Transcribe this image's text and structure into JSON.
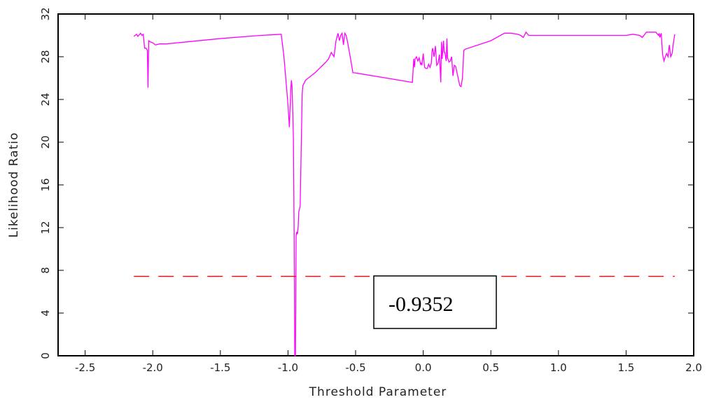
{
  "chart_data": {
    "type": "line",
    "title": "",
    "xlabel": "Threshold Parameter",
    "ylabel": "Likelihood Ratio",
    "xlim": [
      -2.7,
      2.0
    ],
    "ylim": [
      0,
      32
    ],
    "x_ticks": [
      -2.5,
      -2.0,
      -1.5,
      -1.0,
      -0.5,
      0.0,
      0.5,
      1.0,
      1.5,
      2.0
    ],
    "x_tick_labels": [
      "-2.5",
      "-2.0",
      "-1.5",
      "-1.0",
      "-0.5",
      "0.0",
      "0.5",
      "1.0",
      "1.5",
      "2.0"
    ],
    "y_ticks": [
      0,
      4,
      8,
      12,
      16,
      20,
      24,
      28,
      32
    ],
    "y_tick_labels": [
      "0",
      "4",
      "8",
      "12",
      "16",
      "20",
      "24",
      "28",
      "32"
    ],
    "grid": false,
    "series": [
      {
        "color": "#ff00ff",
        "style": "solid",
        "x": [
          -2.14,
          -2.12,
          -2.11,
          -2.09,
          -2.08,
          -2.07,
          -2.06,
          -2.05,
          -2.04,
          -2.035,
          -2.03,
          -2.02,
          -2.0,
          -1.98,
          -1.95,
          -1.9,
          -1.5,
          -1.2,
          -1.05,
          -1.03,
          -1.0,
          -0.99,
          -0.98,
          -0.975,
          -0.97,
          -0.965,
          -0.96,
          -0.955,
          -0.95,
          -0.945,
          -0.94,
          -0.9352,
          -0.93,
          -0.925,
          -0.92,
          -0.91,
          -0.895,
          -0.89,
          -0.87,
          -0.8,
          -0.72,
          -0.7,
          -0.68,
          -0.66,
          -0.645,
          -0.63,
          -0.62,
          -0.61,
          -0.6,
          -0.59,
          -0.58,
          -0.57,
          -0.56,
          -0.54,
          -0.52,
          -0.51,
          -0.08,
          -0.07,
          -0.065,
          -0.06,
          -0.05,
          -0.04,
          -0.03,
          -0.02,
          -0.015,
          -0.01,
          0.0,
          0.01,
          0.02,
          0.03,
          0.04,
          0.05,
          0.06,
          0.065,
          0.07,
          0.08,
          0.09,
          0.1,
          0.11,
          0.12,
          0.13,
          0.135,
          0.14,
          0.15,
          0.155,
          0.16,
          0.17,
          0.175,
          0.18,
          0.19,
          0.2,
          0.21,
          0.22,
          0.23,
          0.24,
          0.25,
          0.27,
          0.28,
          0.29,
          0.3,
          0.31,
          0.5,
          0.6,
          0.65,
          0.7,
          0.72,
          0.74,
          0.76,
          0.78,
          1.0,
          1.5,
          1.55,
          1.6,
          1.62,
          1.65,
          1.7,
          1.72,
          1.74,
          1.745,
          1.75,
          1.76,
          1.77,
          1.78,
          1.79,
          1.8,
          1.81,
          1.82,
          1.83,
          1.84,
          1.85,
          1.86
        ],
        "y": [
          29.9,
          30.1,
          29.9,
          30.2,
          30.0,
          30.1,
          28.8,
          28.8,
          28.6,
          25.1,
          29.5,
          29.4,
          29.3,
          29.1,
          29.2,
          29.2,
          29.7,
          30.0,
          30.1,
          28.0,
          23.5,
          21.4,
          24.8,
          25.8,
          25.2,
          23.0,
          20.3,
          12.0,
          0.0,
          0.0,
          11.2,
          11.6,
          11.4,
          12.0,
          13.5,
          14.0,
          24.5,
          25.3,
          25.8,
          26.5,
          27.5,
          27.8,
          28.4,
          28.0,
          29.5,
          30.2,
          29.5,
          30.0,
          30.2,
          29.1,
          30.2,
          30.0,
          29.4,
          28.0,
          26.5,
          26.5,
          25.6,
          27.8,
          27.0,
          27.8,
          28.0,
          27.6,
          27.9,
          27.3,
          27.4,
          27.2,
          28.3,
          27.0,
          26.9,
          26.9,
          27.3,
          27.0,
          27.4,
          28.5,
          28.8,
          28.0,
          29.0,
          27.2,
          27.4,
          28.2,
          25.6,
          29.4,
          27.8,
          29.5,
          28.4,
          28.4,
          27.6,
          29.7,
          27.9,
          27.5,
          27.6,
          28.0,
          26.2,
          27.2,
          27.1,
          26.5,
          25.3,
          25.2,
          26.0,
          28.6,
          28.7,
          29.5,
          30.2,
          30.2,
          30.1,
          30.0,
          29.8,
          30.3,
          30.0,
          30.0,
          30.0,
          30.1,
          30.0,
          29.8,
          30.3,
          30.3,
          30.3,
          30.0,
          30.2,
          29.8,
          30.2,
          28.2,
          27.6,
          28.0,
          28.3,
          28.0,
          29.1,
          28.0,
          28.3,
          29.3,
          30.1
        ]
      },
      {
        "color": "#ff0000",
        "style": "dashed",
        "x": [
          -2.14,
          1.86
        ],
        "y": [
          7.44,
          7.44
        ]
      }
    ],
    "annotations": [
      {
        "text": "-0.9352"
      }
    ]
  }
}
